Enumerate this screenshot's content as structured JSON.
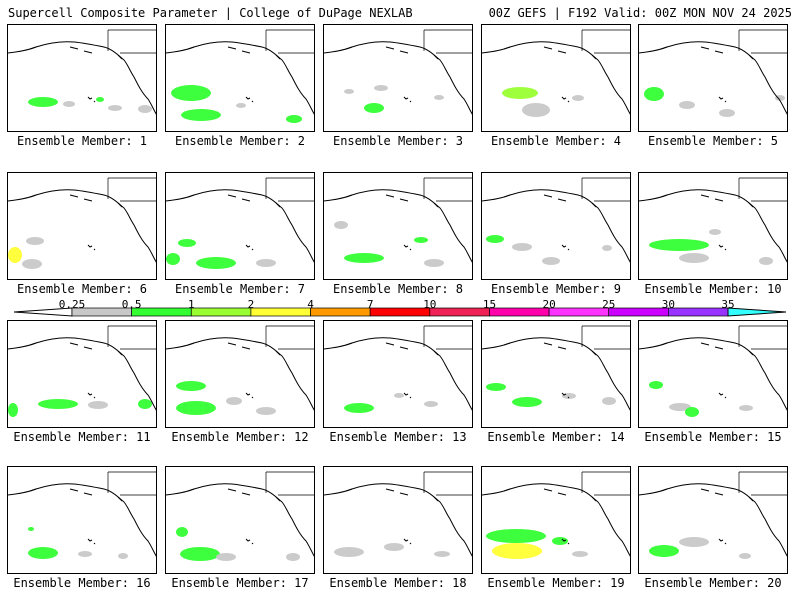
{
  "header": {
    "left": "Supercell Composite Parameter | College of DuPage NEXLAB",
    "right": "00Z GEFS | F192 Valid: 00Z MON NOV 24 2025"
  },
  "panels": [
    {
      "label": "Ensemble Member: 1"
    },
    {
      "label": "Ensemble Member: 2"
    },
    {
      "label": "Ensemble Member: 3"
    },
    {
      "label": "Ensemble Member: 4"
    },
    {
      "label": "Ensemble Member: 5"
    },
    {
      "label": "Ensemble Member: 6"
    },
    {
      "label": "Ensemble Member: 7"
    },
    {
      "label": "Ensemble Member: 8"
    },
    {
      "label": "Ensemble Member: 9"
    },
    {
      "label": "Ensemble Member: 10"
    },
    {
      "label": "Ensemble Member: 11"
    },
    {
      "label": "Ensemble Member: 12"
    },
    {
      "label": "Ensemble Member: 13"
    },
    {
      "label": "Ensemble Member: 14"
    },
    {
      "label": "Ensemble Member: 15"
    },
    {
      "label": "Ensemble Member: 16"
    },
    {
      "label": "Ensemble Member: 17"
    },
    {
      "label": "Ensemble Member: 18"
    },
    {
      "label": "Ensemble Member: 19"
    },
    {
      "label": "Ensemble Member: 20"
    }
  ],
  "legend": {
    "labels": [
      "0.25",
      "0.5",
      "1",
      "2",
      "4",
      "7",
      "10",
      "15",
      "20",
      "25",
      "30",
      "35"
    ],
    "colors": [
      "#c8c8c8",
      "#33ff33",
      "#99ff33",
      "#ffff33",
      "#ff9900",
      "#ff0000",
      "#ee2255",
      "#ff00aa",
      "#ff33ff",
      "#cc00ff",
      "#9933ff",
      "#33ffff"
    ]
  },
  "colors": {
    "border": "#000000",
    "coast": "#000000",
    "gray_field": "#c8c8c8",
    "green_field": "#33ff33",
    "lime_field": "#99ff33",
    "yellow_field": "#ffff33",
    "red_field": "#ff0000"
  }
}
